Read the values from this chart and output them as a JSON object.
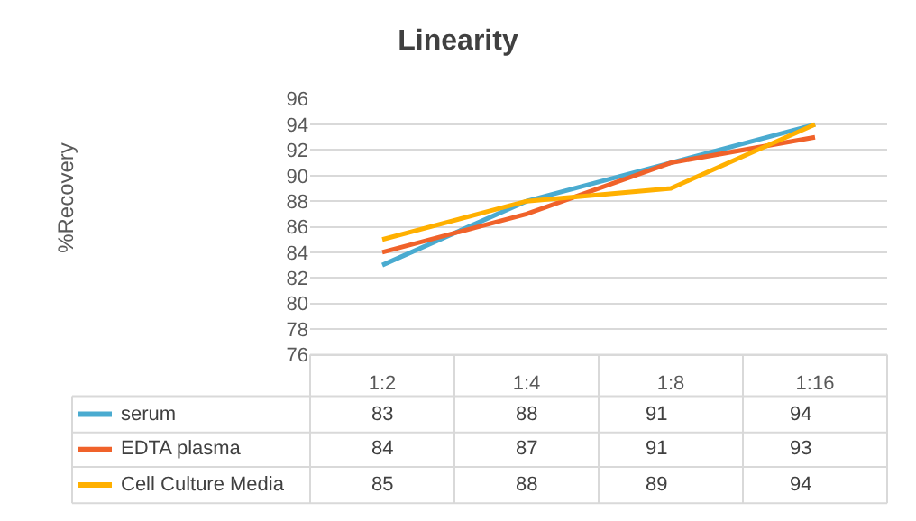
{
  "chart_data": {
    "type": "line",
    "title": "Linearity",
    "annotations": [
      "%Recovery"
    ],
    "categories": [
      "1:2",
      "1:4",
      "1:8",
      "1:16"
    ],
    "series": [
      {
        "name": "serum",
        "color": "#4aabd0",
        "values": [
          83,
          88,
          91,
          94
        ]
      },
      {
        "name": "EDTA plasma",
        "color": "#f0622a",
        "values": [
          84,
          87,
          91,
          93
        ]
      },
      {
        "name": "Cell Culture Media",
        "color": "#ffb000",
        "values": [
          85,
          88,
          89,
          94
        ]
      }
    ],
    "ylim": [
      76,
      96
    ],
    "yticks": [
      76,
      78,
      80,
      82,
      84,
      86,
      88,
      90,
      92,
      94,
      96
    ],
    "grid": "y",
    "legend": "bottom",
    "data_labels": true,
    "marker": "none",
    "line_style": "solid"
  }
}
